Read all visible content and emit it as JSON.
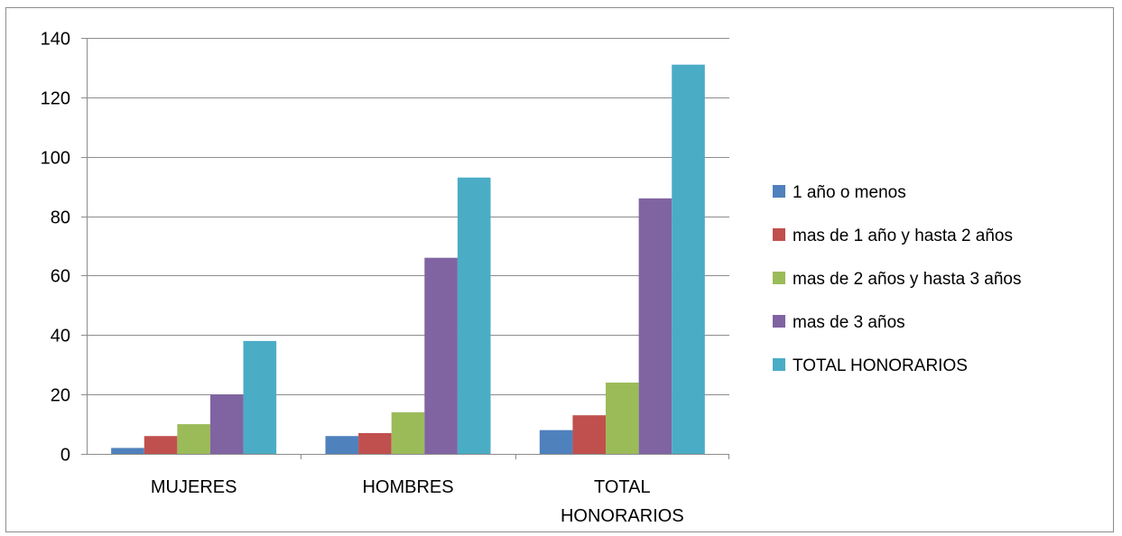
{
  "chart_data": {
    "type": "bar",
    "title": "",
    "xlabel": "",
    "ylabel": "",
    "ylim": [
      0,
      140
    ],
    "yticks": [
      0,
      20,
      40,
      60,
      80,
      100,
      120,
      140
    ],
    "grid": true,
    "legend_position": "right",
    "categories": [
      [
        "MUJERES"
      ],
      [
        "HOMBRES"
      ],
      [
        "TOTAL",
        "HONORARIOS"
      ]
    ],
    "series": [
      {
        "name": "1 año o menos",
        "color": "#4f81bd",
        "values": [
          2,
          6,
          8
        ]
      },
      {
        "name": "mas de 1 año y hasta 2 años",
        "color": "#c0504d",
        "values": [
          6,
          7,
          13
        ]
      },
      {
        "name": "mas de 2 años y hasta 3 años",
        "color": "#9bbb59",
        "values": [
          10,
          14,
          24
        ]
      },
      {
        "name": "mas de 3 años",
        "color": "#8064a2",
        "values": [
          20,
          66,
          86
        ]
      },
      {
        "name": "TOTAL HONORARIOS",
        "color": "#4bacc6",
        "values": [
          38,
          93,
          131
        ]
      }
    ]
  }
}
